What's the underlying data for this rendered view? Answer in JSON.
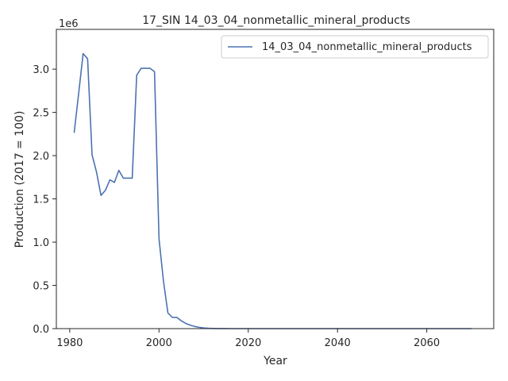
{
  "chart_data": {
    "type": "line",
    "title": "17_SIN 14_03_04_nonmetallic_mineral_products",
    "xlabel": "Year",
    "ylabel": "Production (2017 = 100)",
    "y_offset_label": "1e6",
    "xlim": [
      1977,
      2075
    ],
    "ylim": [
      0,
      3460000
    ],
    "xticks": [
      1980,
      2000,
      2020,
      2040,
      2060
    ],
    "xtick_labels": [
      "1980",
      "2000",
      "2020",
      "2040",
      "2060"
    ],
    "yticks": [
      0,
      500000,
      1000000,
      1500000,
      2000000,
      2500000,
      3000000
    ],
    "ytick_labels": [
      "0.0",
      "0.5",
      "1.0",
      "1.5",
      "2.0",
      "2.5",
      "3.0"
    ],
    "grid": false,
    "legend_position": "top-right",
    "series": [
      {
        "name": "14_03_04_nonmetallic_mineral_products",
        "color": "#4c72b0",
        "x": [
          1981,
          1982,
          1983,
          1984,
          1985,
          1986,
          1987,
          1988,
          1989,
          1990,
          1991,
          1992,
          1993,
          1994,
          1995,
          1996,
          1997,
          1998,
          1999,
          2000,
          2001,
          2002,
          2003,
          2004,
          2005,
          2006,
          2007,
          2008,
          2009,
          2010,
          2011,
          2012,
          2013,
          2014,
          2015,
          2016,
          2017,
          2018,
          2019,
          2020,
          2025,
          2030,
          2035,
          2040,
          2045,
          2050,
          2055,
          2060,
          2065,
          2070
        ],
        "y": [
          2270000,
          2720000,
          3180000,
          3120000,
          2010000,
          1810000,
          1540000,
          1600000,
          1720000,
          1690000,
          1830000,
          1740000,
          1740000,
          1740000,
          2930000,
          3010000,
          3010000,
          3010000,
          2970000,
          1040000,
          550000,
          180000,
          130000,
          130000,
          90000,
          60000,
          40000,
          25000,
          15000,
          8000,
          4000,
          2000,
          1000,
          500,
          200,
          100,
          100,
          50,
          20,
          10,
          0,
          0,
          0,
          0,
          0,
          0,
          0,
          0,
          0,
          0
        ]
      }
    ]
  }
}
